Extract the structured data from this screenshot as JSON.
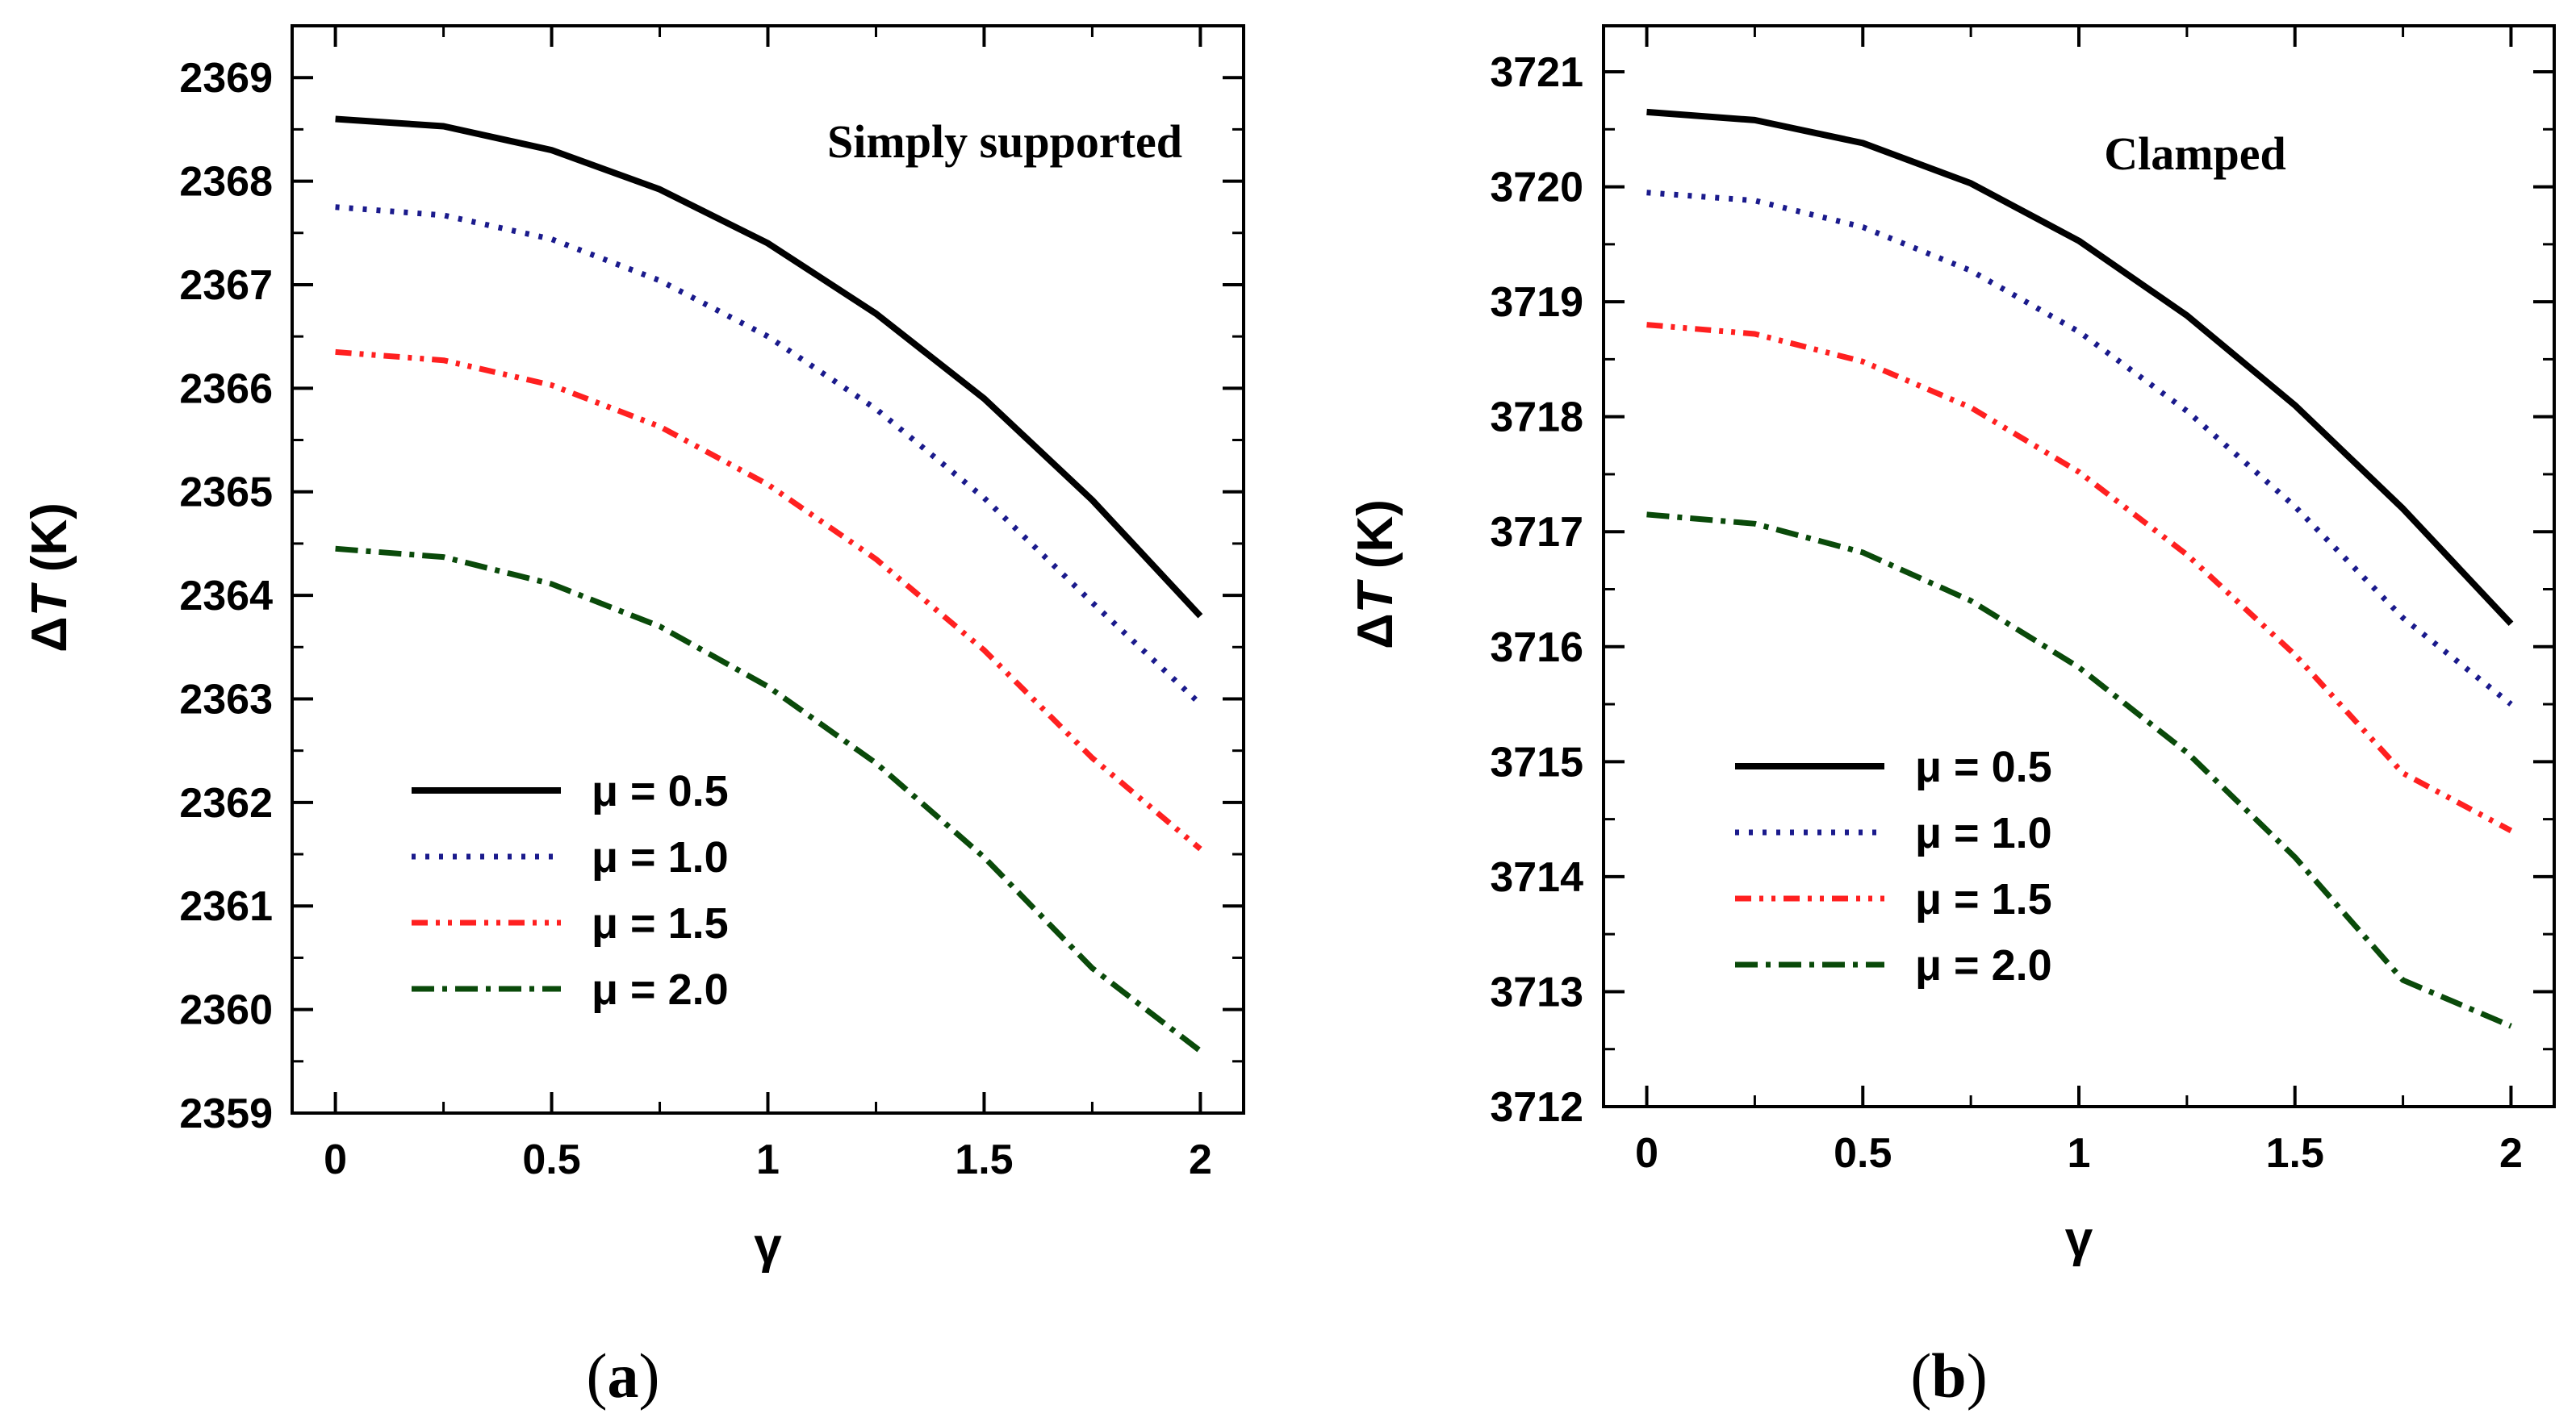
{
  "chart_data": [
    {
      "type": "line",
      "panel_label_prefix": "(",
      "panel_label_letter": "a",
      "panel_label_suffix": ")",
      "annotation": "Simply supported",
      "xlabel": "γ",
      "ylabel_delta": "Δ",
      "ylabel_var": "T",
      "ylabel_unit": " (K)",
      "xlim": [
        -0.1,
        2.1
      ],
      "ylim": [
        2359,
        2369.5
      ],
      "xticks": [
        0,
        0.5,
        1,
        1.5,
        2
      ],
      "xtick_labels": [
        "0",
        "0.5",
        "1",
        "1.5",
        "2"
      ],
      "yticks": [
        2359,
        2360,
        2361,
        2362,
        2363,
        2364,
        2365,
        2366,
        2367,
        2368,
        2369
      ],
      "ytick_labels": [
        "2359",
        "2360",
        "2361",
        "2362",
        "2363",
        "2364",
        "2365",
        "2366",
        "2367",
        "2368",
        "2369"
      ],
      "x": [
        0,
        0.25,
        0.5,
        0.75,
        1,
        1.25,
        1.5,
        1.75,
        2
      ],
      "series": [
        {
          "name": "μ = 0.5",
          "color": "#000000",
          "dash": "solid",
          "values": [
            2368.6,
            2368.53,
            2368.3,
            2367.92,
            2367.4,
            2366.72,
            2365.9,
            2364.92,
            2363.8
          ]
        },
        {
          "name": "μ = 1.0",
          "color": "#1a1a8c",
          "dash": "dotted",
          "values": [
            2367.75,
            2367.67,
            2367.44,
            2367.04,
            2366.5,
            2365.8,
            2364.94,
            2363.93,
            2362.95
          ]
        },
        {
          "name": "μ = 1.5",
          "color": "#ff2020",
          "dash": "dashdotdot",
          "values": [
            2366.35,
            2366.27,
            2366.03,
            2365.63,
            2365.07,
            2364.35,
            2363.47,
            2362.43,
            2361.55
          ]
        },
        {
          "name": "μ = 2.0",
          "color": "#0a4a0a",
          "dash": "dashdot",
          "values": [
            2364.45,
            2364.37,
            2364.11,
            2363.7,
            2363.12,
            2362.38,
            2361.47,
            2360.4,
            2359.6
          ]
        }
      ],
      "legend_position": "bottom-left"
    },
    {
      "type": "line",
      "panel_label_prefix": "(",
      "panel_label_letter": "b",
      "panel_label_suffix": ")",
      "annotation": "Clamped",
      "xlabel": "γ",
      "ylabel_delta": "Δ",
      "ylabel_var": "T",
      "ylabel_unit": " (K)",
      "xlim": [
        -0.1,
        2.1
      ],
      "ylim": [
        3712,
        3721.4
      ],
      "xticks": [
        0,
        0.5,
        1,
        1.5,
        2
      ],
      "xtick_labels": [
        "0",
        "0.5",
        "1",
        "1.5",
        "2"
      ],
      "yticks": [
        3712,
        3713,
        3714,
        3715,
        3716,
        3717,
        3718,
        3719,
        3720,
        3721
      ],
      "ytick_labels": [
        "3712",
        "3713",
        "3714",
        "3715",
        "3716",
        "3717",
        "3718",
        "3719",
        "3720",
        "3721"
      ],
      "x": [
        0,
        0.25,
        0.5,
        0.75,
        1,
        1.25,
        1.5,
        1.75,
        2
      ],
      "series": [
        {
          "name": "μ = 0.5",
          "color": "#000000",
          "dash": "solid",
          "values": [
            3720.65,
            3720.58,
            3720.38,
            3720.03,
            3719.53,
            3718.88,
            3718.1,
            3717.2,
            3716.2
          ]
        },
        {
          "name": "μ = 1.0",
          "color": "#1a1a8c",
          "dash": "dotted",
          "values": [
            3719.95,
            3719.88,
            3719.65,
            3719.27,
            3718.74,
            3718.05,
            3717.22,
            3716.25,
            3715.5
          ]
        },
        {
          "name": "μ = 1.5",
          "color": "#ff2020",
          "dash": "dashdotdot",
          "values": [
            3718.8,
            3718.72,
            3718.48,
            3718.08,
            3717.52,
            3716.8,
            3715.93,
            3714.9,
            3714.4
          ]
        },
        {
          "name": "μ = 2.0",
          "color": "#0a4a0a",
          "dash": "dashdot",
          "values": [
            3717.15,
            3717.07,
            3716.82,
            3716.4,
            3715.82,
            3715.08,
            3714.17,
            3713.1,
            3712.7
          ]
        }
      ],
      "legend_position": "bottom-left"
    }
  ]
}
